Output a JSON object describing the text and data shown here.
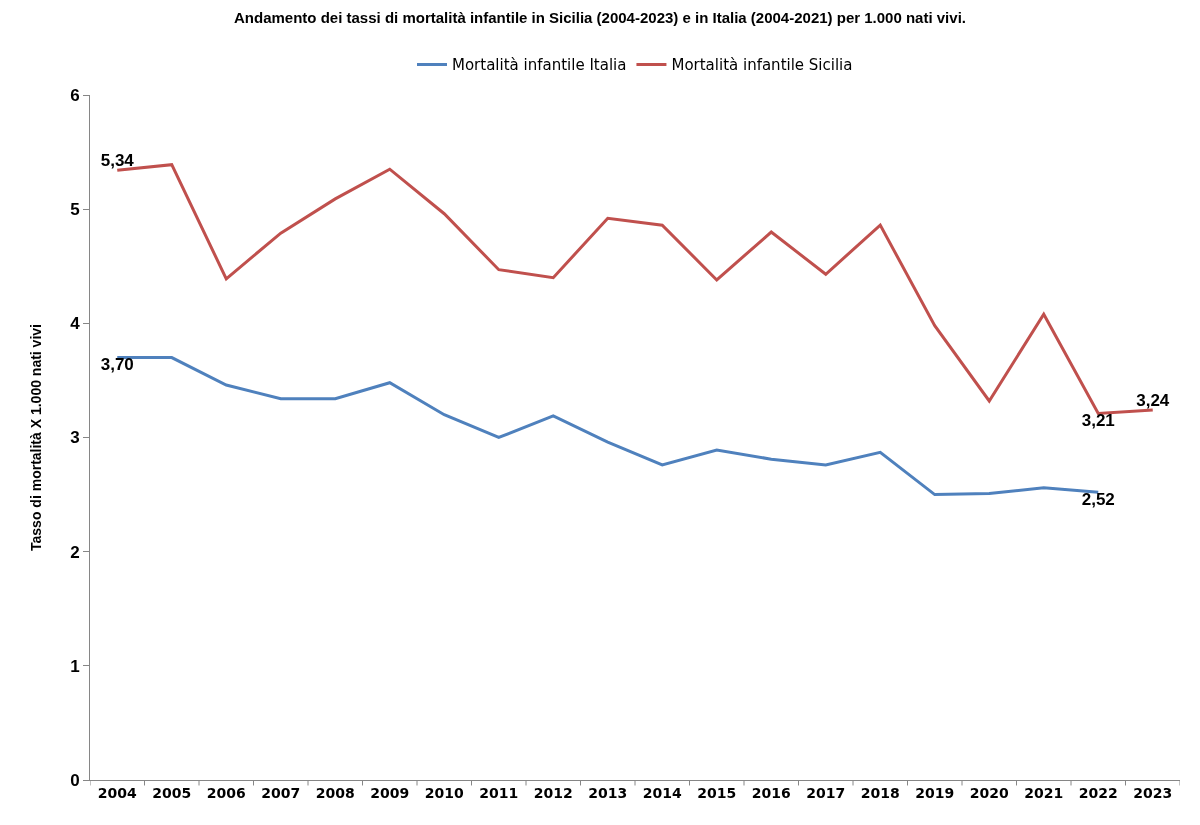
{
  "chart_data": {
    "type": "line",
    "title": "Andamento dei tassi di mortalità infantile in Sicilia (2004-2023) e in Italia (2004-2021) per 1.000 nati vivi.",
    "ylabel": "Tasso di mortalità X 1.000 nati vivi",
    "categories": [
      "2004",
      "2005",
      "2006",
      "2007",
      "2008",
      "2009",
      "2010",
      "2011",
      "2012",
      "2013",
      "2014",
      "2015",
      "2016",
      "2017",
      "2018",
      "2019",
      "2020",
      "2021",
      "2022",
      "2023"
    ],
    "series": [
      {
        "name": "Mortalità infantile Italia",
        "color": "#4f81bd",
        "values": [
          3.7,
          3.7,
          3.46,
          3.34,
          3.34,
          3.48,
          3.2,
          3.0,
          3.19,
          2.96,
          2.76,
          2.89,
          2.81,
          2.76,
          2.87,
          2.5,
          2.51,
          2.56,
          2.52,
          null
        ],
        "value_labels": [
          "3,70",
          null,
          null,
          null,
          null,
          null,
          null,
          null,
          null,
          null,
          null,
          null,
          null,
          null,
          null,
          null,
          null,
          null,
          "2,52",
          null
        ]
      },
      {
        "name": "Mortalità infantile Sicilia",
        "color": "#c0504d",
        "values": [
          5.34,
          5.39,
          4.39,
          4.79,
          5.09,
          5.35,
          4.96,
          4.47,
          4.4,
          4.92,
          4.86,
          4.38,
          4.8,
          4.43,
          4.86,
          3.98,
          3.32,
          4.08,
          3.21,
          3.24
        ],
        "value_labels": [
          "5,34",
          null,
          null,
          null,
          null,
          null,
          null,
          null,
          null,
          null,
          null,
          null,
          null,
          null,
          null,
          null,
          null,
          null,
          "3,21",
          "3,24"
        ]
      }
    ],
    "ylim": [
      0,
      6
    ],
    "yticks": [
      0,
      1,
      2,
      3,
      4,
      5,
      6
    ],
    "legend": "top",
    "marker": "none",
    "line_style": "solid"
  }
}
